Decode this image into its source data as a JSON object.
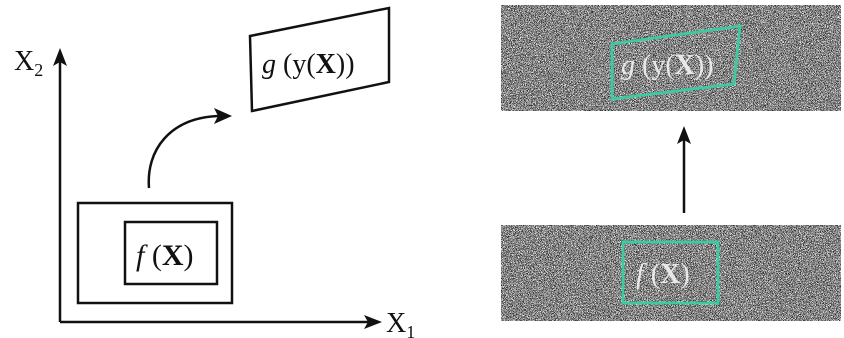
{
  "left_panel": {
    "axis_x": {
      "base": "X",
      "sub": "1"
    },
    "axis_y": {
      "base": "X",
      "sub": "2"
    },
    "source_label": {
      "func": "f",
      "open": " (",
      "var": "X",
      "close": ")"
    },
    "target_label": {
      "func": "g",
      "open": " (y(",
      "var": "X",
      "close": "))"
    }
  },
  "right_panel": {
    "source_label": {
      "func": "f",
      "open": " (",
      "var": "X",
      "close": ")"
    },
    "target_label": {
      "func": "g",
      "open": " (y(",
      "var": "X",
      "close": "))"
    },
    "highlight_color": "#40c8a0",
    "noise_base_color": "#2a2a2a"
  }
}
